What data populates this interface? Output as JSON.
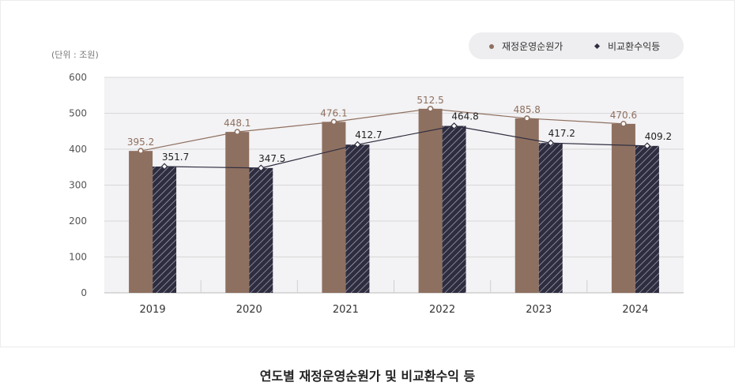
{
  "unit_label": "(단위 : 조원)",
  "caption": "연도별 재정운영순원가 및 비교환수익 등",
  "colors": {
    "series1": "#8e7060",
    "series2": "#2e2d40",
    "grid": "#d8d8d8",
    "plot_bg": "#f3f2f4"
  },
  "chart_data": {
    "type": "bar",
    "categories": [
      "2019",
      "2020",
      "2021",
      "2022",
      "2023",
      "2024"
    ],
    "series": [
      {
        "name": "재정운영순원가",
        "values": [
          395.2,
          448.1,
          476.1,
          512.5,
          485.8,
          470.6
        ],
        "style": "solid",
        "line": "connected"
      },
      {
        "name": "비교환수익등",
        "values": [
          351.7,
          347.5,
          412.7,
          464.8,
          417.2,
          409.2
        ],
        "style": "hatched",
        "line": "connected"
      }
    ],
    "ylim": [
      0,
      600
    ],
    "yticks": [
      "0",
      "100",
      "200",
      "300",
      "400",
      "500",
      "600"
    ],
    "grid": true,
    "legend": "top-right",
    "data_labels": true
  }
}
